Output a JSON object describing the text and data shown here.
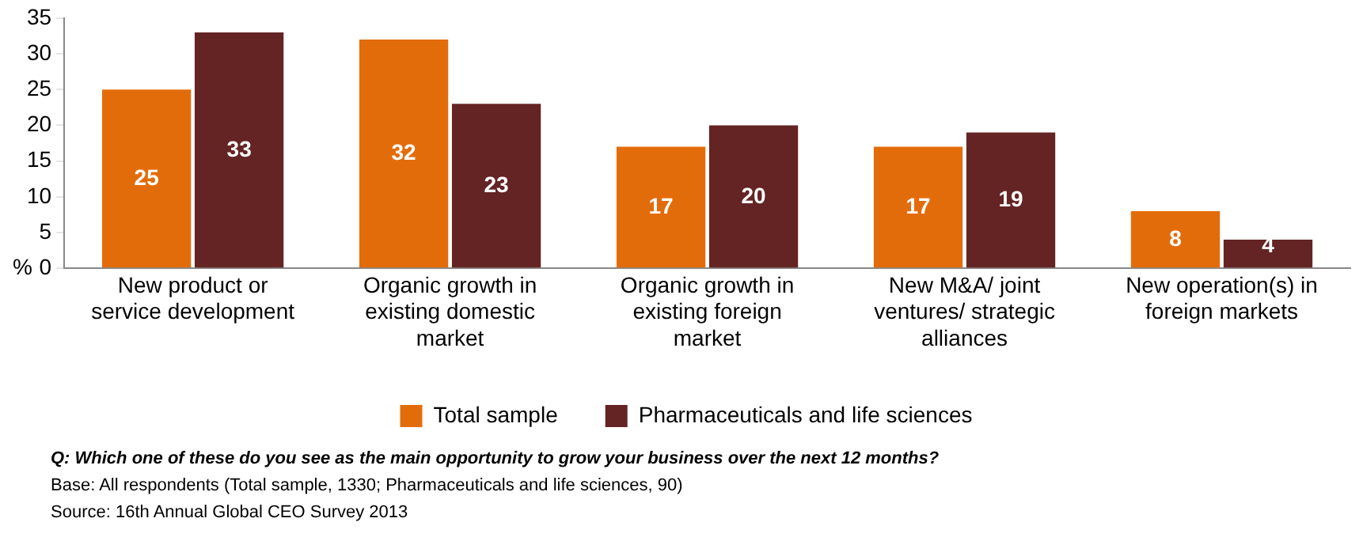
{
  "chart_data": {
    "type": "bar",
    "ylabel": "%",
    "categories": [
      "New product or service development",
      "Organic growth in existing domestic market",
      "Organic growth in existing foreign market",
      "New M&A/ joint ventures/ strategic alliances",
      "New operation(s) in foreign markets"
    ],
    "series": [
      {
        "name": "Total sample",
        "color": "#e36c0a",
        "values": [
          25,
          32,
          17,
          17,
          8
        ]
      },
      {
        "name": "Pharmaceuticals and life sciences",
        "color": "#632423",
        "values": [
          33,
          23,
          20,
          19,
          4
        ]
      }
    ],
    "ylim": [
      0,
      35
    ],
    "yticks": [
      0,
      5,
      10,
      15,
      20,
      25,
      30,
      35
    ],
    "grid": false,
    "legend": "bottom",
    "data_labels": true,
    "annotations": [
      "Q: Which one of these do you see as the main opportunity to grow your business over the next 12 months?",
      "Base: All respondents (Total sample, 1330; Pharmaceuticals and life sciences, 90)",
      "Source: 16th Annual Global CEO Survey 2013"
    ]
  }
}
